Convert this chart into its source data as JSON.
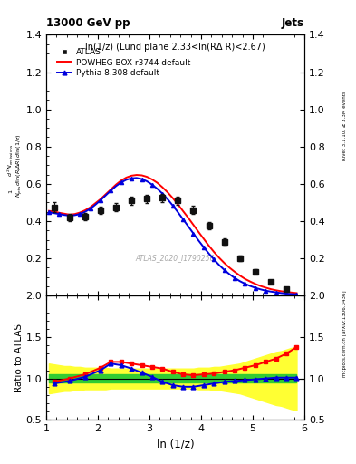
{
  "title_left": "13000 GeV pp",
  "title_right": "Jets",
  "annotation": "ln(1/z) (Lund plane 2.33<ln(RΔ R)<2.67)",
  "watermark": "ATLAS_2020_I1790256",
  "right_label_top": "Rivet 3.1.10, ≥ 3.3M events",
  "right_label_bottom": "mcplots.cern.ch [arXiv:1306.3436]",
  "xlabel": "ln (1/z)",
  "ylabel_ratio": "Ratio to ATLAS",
  "ylim_main": [
    0.0,
    1.4
  ],
  "ylim_ratio": [
    0.5,
    2.0
  ],
  "xlim": [
    1.0,
    6.0
  ],
  "yticks_main": [
    0.2,
    0.4,
    0.6,
    0.8,
    1.0,
    1.2,
    1.4
  ],
  "yticks_ratio": [
    0.5,
    1.0,
    1.5,
    2.0
  ],
  "atlas_x": [
    1.15,
    1.45,
    1.75,
    2.05,
    2.35,
    2.65,
    2.95,
    3.25,
    3.55,
    3.85,
    4.15,
    4.45,
    4.75,
    5.05,
    5.35,
    5.65
  ],
  "atlas_y": [
    0.475,
    0.42,
    0.425,
    0.46,
    0.475,
    0.51,
    0.52,
    0.525,
    0.51,
    0.46,
    0.375,
    0.29,
    0.2,
    0.13,
    0.075,
    0.035
  ],
  "atlas_yerr_lo": [
    0.025,
    0.018,
    0.018,
    0.02,
    0.022,
    0.022,
    0.022,
    0.022,
    0.022,
    0.022,
    0.02,
    0.018,
    0.015,
    0.012,
    0.008,
    0.006
  ],
  "atlas_yerr_hi": [
    0.025,
    0.018,
    0.018,
    0.02,
    0.022,
    0.022,
    0.022,
    0.022,
    0.022,
    0.022,
    0.02,
    0.018,
    0.015,
    0.012,
    0.008,
    0.006
  ],
  "powheg_x": [
    1.05,
    1.15,
    1.25,
    1.35,
    1.45,
    1.55,
    1.65,
    1.75,
    1.85,
    1.95,
    2.05,
    2.15,
    2.25,
    2.35,
    2.45,
    2.55,
    2.65,
    2.75,
    2.85,
    2.95,
    3.05,
    3.15,
    3.25,
    3.35,
    3.45,
    3.55,
    3.65,
    3.75,
    3.85,
    3.95,
    4.05,
    4.15,
    4.25,
    4.35,
    4.45,
    4.55,
    4.65,
    4.75,
    4.85,
    4.95,
    5.05,
    5.15,
    5.25,
    5.35,
    5.45,
    5.55,
    5.65,
    5.75,
    5.85
  ],
  "powheg_y": [
    0.455,
    0.452,
    0.445,
    0.44,
    0.435,
    0.438,
    0.446,
    0.458,
    0.474,
    0.496,
    0.518,
    0.544,
    0.57,
    0.596,
    0.618,
    0.634,
    0.644,
    0.648,
    0.646,
    0.638,
    0.624,
    0.606,
    0.582,
    0.555,
    0.524,
    0.49,
    0.454,
    0.418,
    0.38,
    0.342,
    0.305,
    0.268,
    0.234,
    0.203,
    0.175,
    0.15,
    0.128,
    0.108,
    0.09,
    0.076,
    0.063,
    0.052,
    0.043,
    0.035,
    0.029,
    0.024,
    0.02,
    0.017,
    0.014
  ],
  "pythia_x": [
    1.05,
    1.15,
    1.25,
    1.35,
    1.45,
    1.55,
    1.65,
    1.75,
    1.85,
    1.95,
    2.05,
    2.15,
    2.25,
    2.35,
    2.45,
    2.55,
    2.65,
    2.75,
    2.85,
    2.95,
    3.05,
    3.15,
    3.25,
    3.35,
    3.45,
    3.55,
    3.65,
    3.75,
    3.85,
    3.95,
    4.05,
    4.15,
    4.25,
    4.35,
    4.45,
    4.55,
    4.65,
    4.75,
    4.85,
    4.95,
    5.05,
    5.15,
    5.25,
    5.35,
    5.45,
    5.55,
    5.65,
    5.75,
    5.85
  ],
  "pythia_y": [
    0.448,
    0.443,
    0.438,
    0.433,
    0.43,
    0.432,
    0.438,
    0.45,
    0.466,
    0.488,
    0.512,
    0.538,
    0.564,
    0.588,
    0.608,
    0.622,
    0.63,
    0.632,
    0.626,
    0.614,
    0.596,
    0.574,
    0.548,
    0.518,
    0.484,
    0.448,
    0.41,
    0.372,
    0.334,
    0.296,
    0.26,
    0.226,
    0.194,
    0.164,
    0.138,
    0.115,
    0.095,
    0.078,
    0.064,
    0.052,
    0.042,
    0.034,
    0.027,
    0.022,
    0.018,
    0.014,
    0.011,
    0.009,
    0.007
  ],
  "ratio_powheg_x": [
    1.15,
    1.45,
    1.75,
    2.05,
    2.25,
    2.45,
    2.65,
    2.85,
    3.05,
    3.25,
    3.45,
    3.65,
    3.85,
    4.05,
    4.25,
    4.45,
    4.65,
    4.85,
    5.05,
    5.25,
    5.45,
    5.65,
    5.85
  ],
  "ratio_powheg_y": [
    0.96,
    1.0,
    1.05,
    1.13,
    1.2,
    1.2,
    1.18,
    1.16,
    1.14,
    1.12,
    1.08,
    1.05,
    1.04,
    1.05,
    1.06,
    1.08,
    1.1,
    1.13,
    1.16,
    1.2,
    1.24,
    1.3,
    1.38
  ],
  "ratio_pythia_x": [
    1.15,
    1.45,
    1.75,
    2.05,
    2.25,
    2.45,
    2.65,
    2.85,
    3.05,
    3.25,
    3.45,
    3.65,
    3.85,
    4.05,
    4.25,
    4.45,
    4.65,
    4.85,
    5.05,
    5.25,
    5.45,
    5.65,
    5.85
  ],
  "ratio_pythia_y": [
    0.94,
    0.97,
    1.02,
    1.1,
    1.18,
    1.16,
    1.12,
    1.07,
    1.02,
    0.96,
    0.92,
    0.9,
    0.9,
    0.92,
    0.94,
    0.96,
    0.97,
    0.98,
    0.99,
    1.0,
    1.01,
    1.01,
    1.01
  ],
  "band_x": [
    1.05,
    1.15,
    1.25,
    1.35,
    1.45,
    1.55,
    1.65,
    1.75,
    1.85,
    1.95,
    2.05,
    2.15,
    2.25,
    2.35,
    2.45,
    2.55,
    2.65,
    2.75,
    2.85,
    2.95,
    3.05,
    3.15,
    3.25,
    3.35,
    3.45,
    3.55,
    3.65,
    3.75,
    3.85,
    3.95,
    4.05,
    4.15,
    4.25,
    4.35,
    4.45,
    4.55,
    4.65,
    4.75,
    4.85,
    4.95,
    5.05,
    5.15,
    5.25,
    5.35,
    5.45,
    5.55,
    5.65,
    5.75,
    5.85
  ],
  "band_green_lo": [
    0.95,
    0.95,
    0.95,
    0.95,
    0.95,
    0.95,
    0.95,
    0.95,
    0.95,
    0.95,
    0.95,
    0.95,
    0.95,
    0.95,
    0.95,
    0.95,
    0.95,
    0.95,
    0.95,
    0.95,
    0.95,
    0.95,
    0.95,
    0.95,
    0.95,
    0.95,
    0.95,
    0.95,
    0.95,
    0.95,
    0.95,
    0.95,
    0.95,
    0.95,
    0.95,
    0.95,
    0.95,
    0.95,
    0.95,
    0.95,
    0.95,
    0.95,
    0.95,
    0.95,
    0.95,
    0.95,
    0.95,
    0.95,
    0.95
  ],
  "band_green_hi": [
    1.05,
    1.05,
    1.05,
    1.05,
    1.05,
    1.05,
    1.05,
    1.05,
    1.05,
    1.05,
    1.05,
    1.05,
    1.05,
    1.05,
    1.05,
    1.05,
    1.05,
    1.05,
    1.05,
    1.05,
    1.05,
    1.05,
    1.05,
    1.05,
    1.05,
    1.05,
    1.05,
    1.05,
    1.05,
    1.05,
    1.05,
    1.05,
    1.05,
    1.05,
    1.05,
    1.05,
    1.05,
    1.05,
    1.05,
    1.05,
    1.05,
    1.05,
    1.05,
    1.05,
    1.05,
    1.05,
    1.05,
    1.05,
    1.05
  ],
  "band_yellow_lo": [
    0.82,
    0.83,
    0.84,
    0.85,
    0.85,
    0.86,
    0.86,
    0.87,
    0.87,
    0.87,
    0.87,
    0.87,
    0.88,
    0.88,
    0.88,
    0.88,
    0.88,
    0.88,
    0.88,
    0.88,
    0.88,
    0.88,
    0.88,
    0.88,
    0.88,
    0.88,
    0.88,
    0.88,
    0.88,
    0.87,
    0.87,
    0.87,
    0.86,
    0.86,
    0.85,
    0.84,
    0.83,
    0.82,
    0.8,
    0.78,
    0.76,
    0.74,
    0.72,
    0.7,
    0.68,
    0.67,
    0.65,
    0.63,
    0.62
  ],
  "band_yellow_hi": [
    1.18,
    1.17,
    1.16,
    1.15,
    1.15,
    1.14,
    1.14,
    1.13,
    1.13,
    1.13,
    1.13,
    1.13,
    1.12,
    1.12,
    1.12,
    1.12,
    1.12,
    1.12,
    1.12,
    1.12,
    1.12,
    1.12,
    1.12,
    1.12,
    1.12,
    1.12,
    1.12,
    1.12,
    1.12,
    1.13,
    1.13,
    1.13,
    1.14,
    1.14,
    1.15,
    1.16,
    1.17,
    1.18,
    1.2,
    1.22,
    1.24,
    1.26,
    1.28,
    1.3,
    1.32,
    1.33,
    1.35,
    1.37,
    1.38
  ],
  "color_atlas": "#111111",
  "color_powheg": "#ff0000",
  "color_pythia": "#0000dd",
  "color_green": "#33cc33",
  "color_yellow": "#ffff33"
}
